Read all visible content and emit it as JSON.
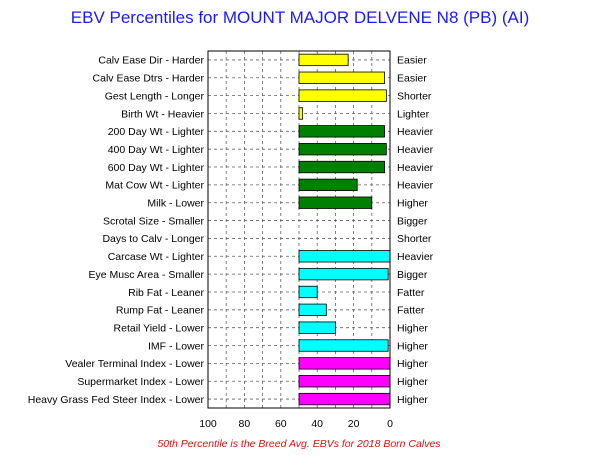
{
  "chart_data": {
    "type": "bar",
    "orientation": "horizontal",
    "title": "EBV Percentiles for MOUNT MAJOR DELVENE N8 (PB) (AI)",
    "footnote": "50th Percentile is the Breed Avg. EBVs for 2018 Born Calves",
    "xlim": [
      100,
      0
    ],
    "x_ticks": [
      "100",
      "80",
      "60",
      "40",
      "20",
      "0"
    ],
    "grid": true,
    "baseline": 50,
    "rows": [
      {
        "left": "Calv Ease Dir - Harder",
        "right": "Easier",
        "value": 23,
        "color": "#ffff00"
      },
      {
        "left": "Calv Ease Dtrs - Harder",
        "right": "Easier",
        "value": 3,
        "color": "#ffff00"
      },
      {
        "left": "Gest Length - Longer",
        "right": "Shorter",
        "value": 2,
        "color": "#ffff00"
      },
      {
        "left": "Birth Wt - Heavier",
        "right": "Lighter",
        "value": 48,
        "color": "#ffff00"
      },
      {
        "left": "200 Day Wt - Lighter",
        "right": "Heavier",
        "value": 3,
        "color": "#008000"
      },
      {
        "left": "400 Day Wt - Lighter",
        "right": "Heavier",
        "value": 2,
        "color": "#008000"
      },
      {
        "left": "600 Day Wt - Lighter",
        "right": "Heavier",
        "value": 3,
        "color": "#008000"
      },
      {
        "left": "Mat Cow Wt - Lighter",
        "right": "Heavier",
        "value": 18,
        "color": "#008000"
      },
      {
        "left": "Milk - Lower",
        "right": "Higher",
        "value": 10,
        "color": "#008000"
      },
      {
        "left": "Scrotal Size - Smaller",
        "right": "Bigger",
        "value": null,
        "color": "#008000"
      },
      {
        "left": "Days to Calv - Longer",
        "right": "Shorter",
        "value": null,
        "color": "#008000"
      },
      {
        "left": "Carcase Wt - Lighter",
        "right": "Heavier",
        "value": 0,
        "color": "#00ffff"
      },
      {
        "left": "Eye Musc Area - Smaller",
        "right": "Bigger",
        "value": 1,
        "color": "#00ffff"
      },
      {
        "left": "Rib Fat - Leaner",
        "right": "Fatter",
        "value": 40,
        "color": "#00ffff"
      },
      {
        "left": "Rump Fat - Leaner",
        "right": "Fatter",
        "value": 35,
        "color": "#00ffff"
      },
      {
        "left": "Retail Yield - Lower",
        "right": "Higher",
        "value": 30,
        "color": "#00ffff"
      },
      {
        "left": "IMF - Lower",
        "right": "Higher",
        "value": 1,
        "color": "#00ffff"
      },
      {
        "left": "Vealer Terminal Index - Lower",
        "right": "Higher",
        "value": 0,
        "color": "#ff00ff"
      },
      {
        "left": "Supermarket Index - Lower",
        "right": "Higher",
        "value": 0,
        "color": "#ff00ff"
      },
      {
        "left": "Heavy Grass Fed Steer Index - Lower",
        "right": "Higher",
        "value": 0,
        "color": "#ff00ff"
      }
    ]
  }
}
